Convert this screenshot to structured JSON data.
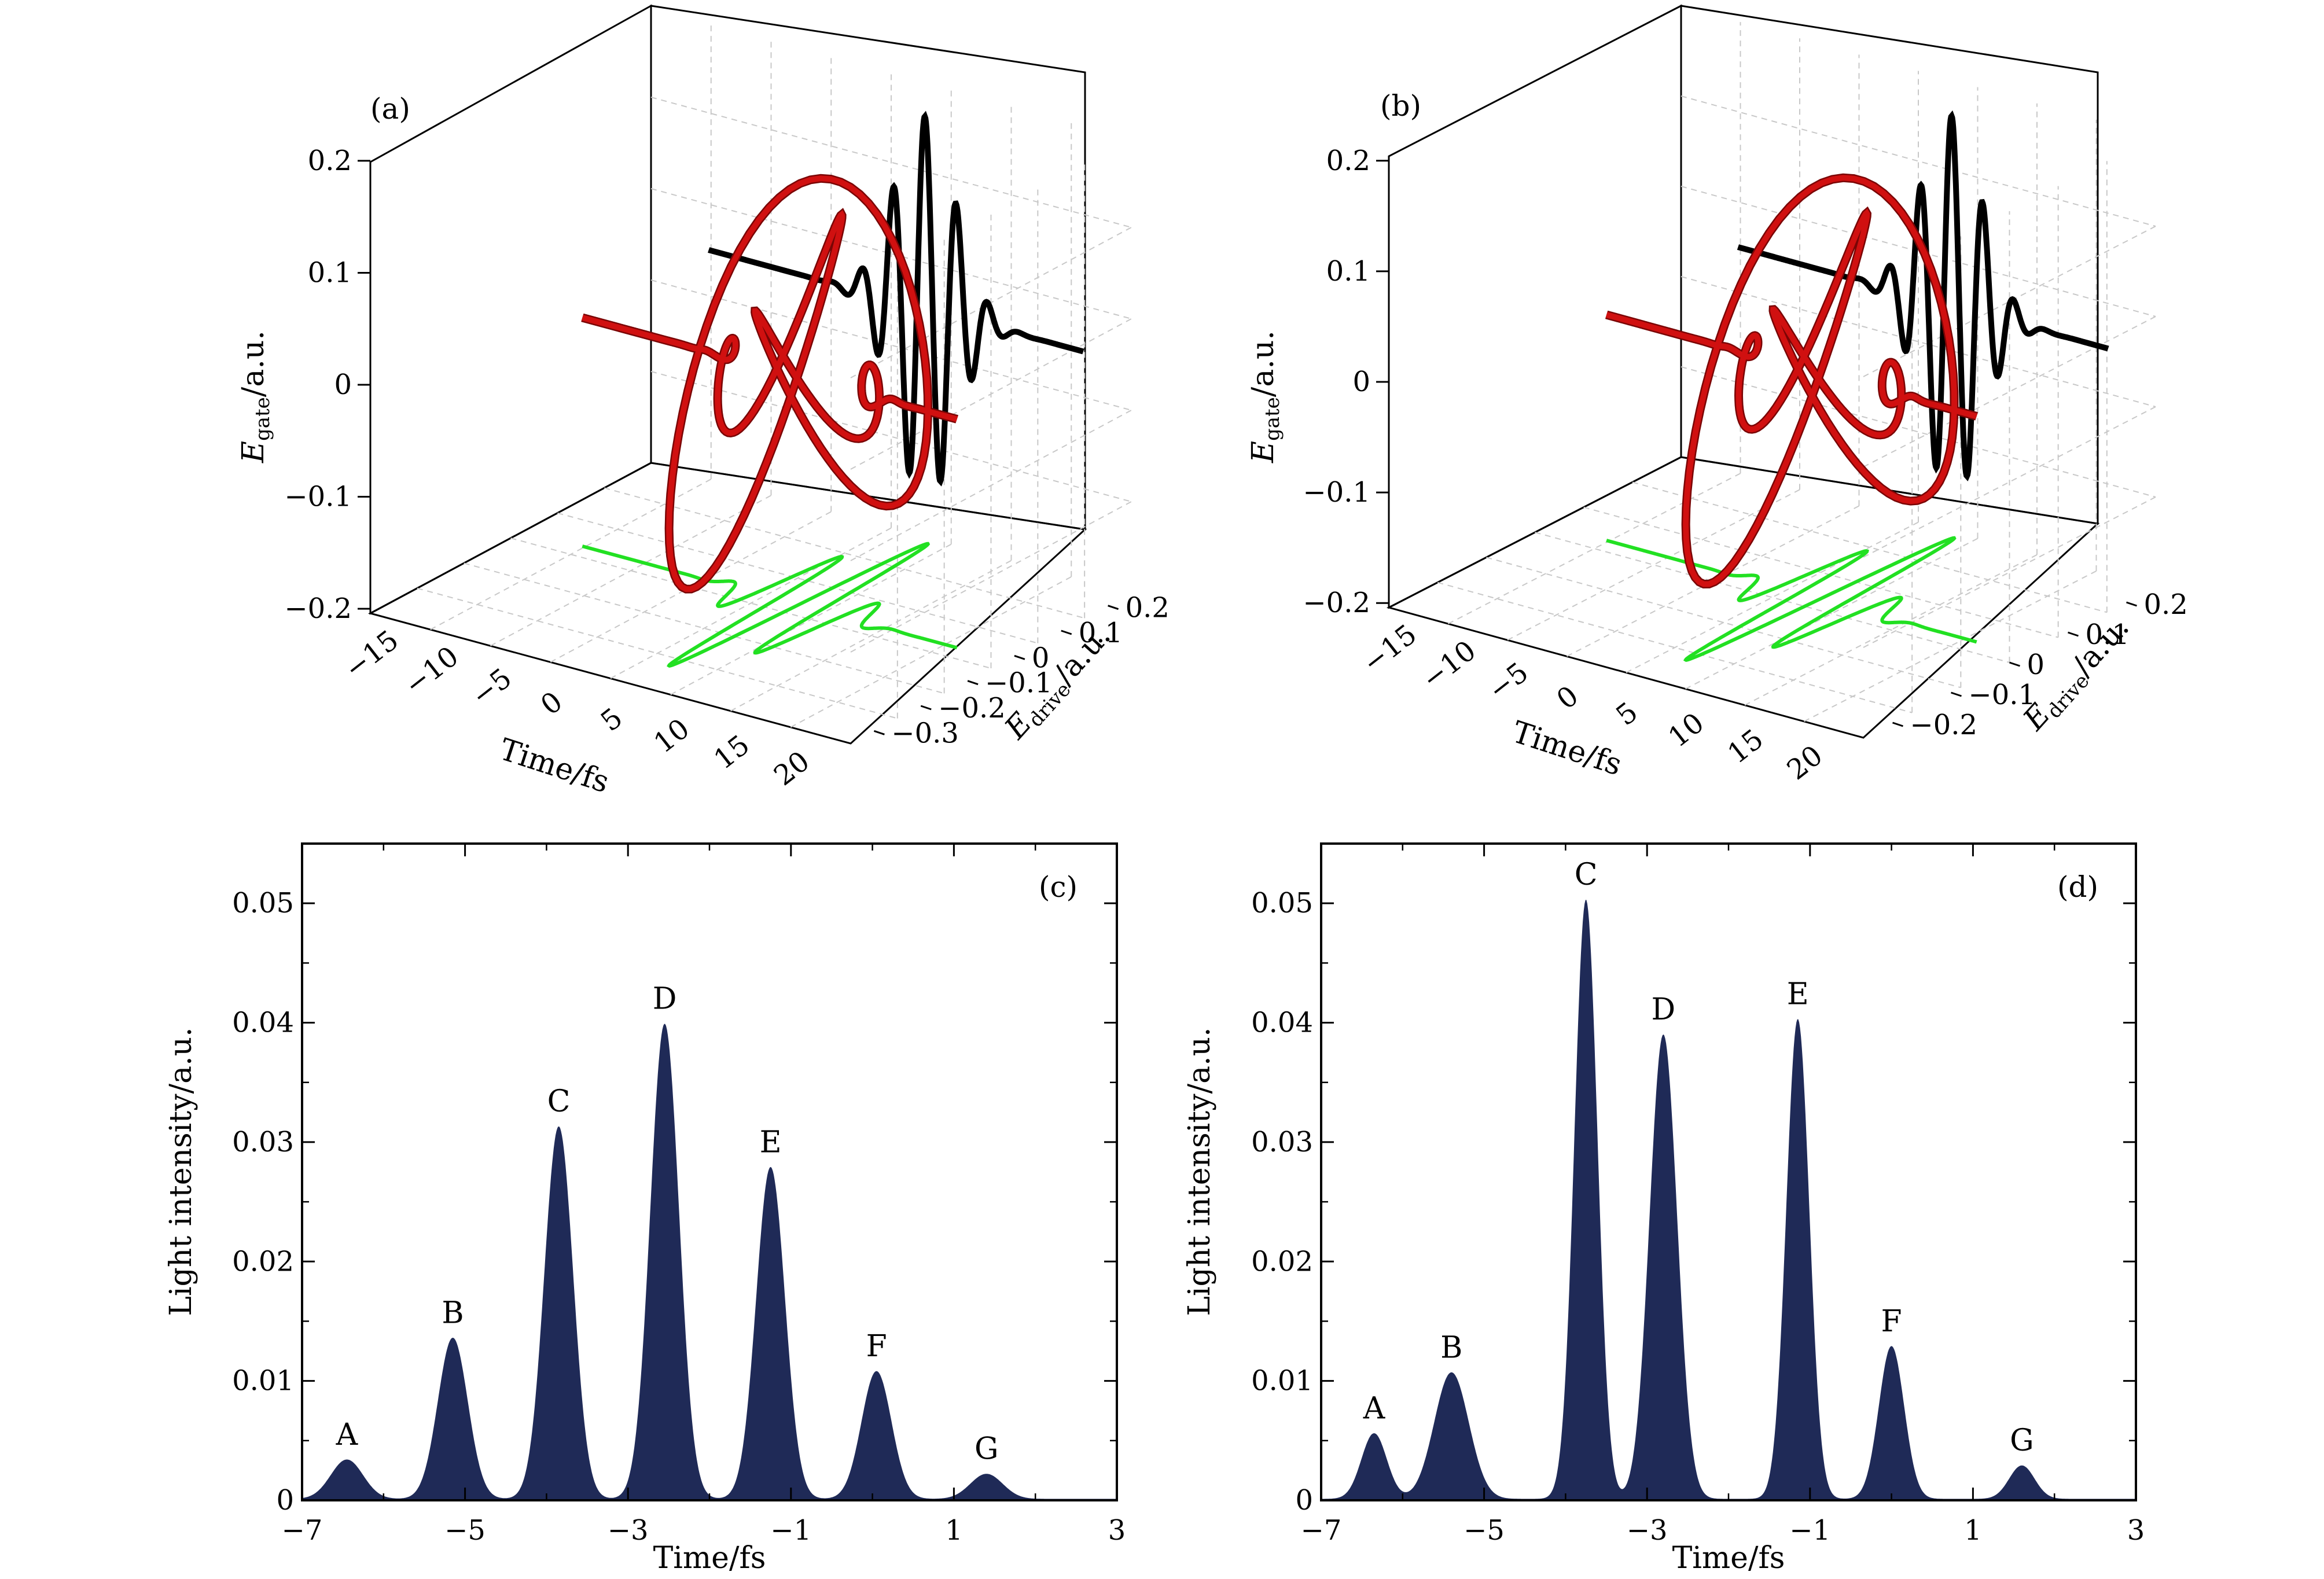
{
  "chart_data": [
    {
      "id": "a",
      "type": "line",
      "panel_label": "(a)",
      "projection": "3d",
      "xlabel": "Time/fs",
      "ylabel_main": "E",
      "ylabel_sub": "drive",
      "ylabel_unit": "/a.u.",
      "zlabel_main": "E",
      "zlabel_sub": "gate",
      "zlabel_unit": "/a.u.",
      "xticks": [
        "−15",
        "−10",
        "−5",
        "0",
        "5",
        "10",
        "15",
        "20"
      ],
      "yticks": [
        "−0.3",
        "−0.2",
        "−0.1",
        "0",
        "0.1",
        "0.2"
      ],
      "zticks": [
        "−0.2",
        "−0.1",
        "0",
        "0.1",
        "0.2"
      ],
      "series": [
        {
          "color": "#d01010",
          "description": "3D trajectory (E_drive, E_gate) vs time"
        },
        {
          "color": "#000000",
          "description": "projection on time–E_gate wall"
        },
        {
          "color": "#22e022",
          "description": "projection on time–E_drive floor"
        }
      ]
    },
    {
      "id": "b",
      "type": "line",
      "panel_label": "(b)",
      "projection": "3d",
      "xlabel": "Time/fs",
      "ylabel_main": "E",
      "ylabel_sub": "drive",
      "ylabel_unit": "/a.u.",
      "zlabel_main": "E",
      "zlabel_sub": "gate",
      "zlabel_unit": "/a.u.",
      "xticks": [
        "−15",
        "−10",
        "−5",
        "0",
        "5",
        "10",
        "15",
        "20"
      ],
      "yticks": [
        "−0.2",
        "−0.1",
        "0",
        "0.1",
        "0.2"
      ],
      "zticks": [
        "−0.2",
        "−0.1",
        "0",
        "0.1",
        "0.2"
      ],
      "series": [
        {
          "color": "#d01010",
          "description": "3D trajectory (E_drive, E_gate) vs time"
        },
        {
          "color": "#000000",
          "description": "projection on time–E_gate wall"
        },
        {
          "color": "#22e022",
          "description": "projection on time–E_drive floor"
        }
      ]
    },
    {
      "id": "c",
      "type": "area",
      "panel_label": "(c)",
      "xlabel": "Time/fs",
      "ylabel": "Light intensity/a.u.",
      "xlim": [
        -7,
        3
      ],
      "ylim": [
        0,
        0.055
      ],
      "xticks": [
        -7,
        -5,
        -3,
        -1,
        1,
        3
      ],
      "xtick_labels": [
        "−7",
        "−5",
        "−3",
        "−1",
        "1",
        "3"
      ],
      "yticks": [
        0,
        0.01,
        0.02,
        0.03,
        0.04,
        0.05
      ],
      "ytick_labels": [
        "0",
        "0.01",
        "0.02",
        "0.03",
        "0.04",
        "0.05"
      ],
      "fill_color": "#1f2a57",
      "peaks": [
        {
          "label": "A",
          "x": -6.45,
          "y": 0.0033,
          "width": 0.28
        },
        {
          "label": "B",
          "x": -5.15,
          "y": 0.0135,
          "width": 0.26
        },
        {
          "label": "C",
          "x": -3.85,
          "y": 0.0312,
          "width": 0.25
        },
        {
          "label": "D",
          "x": -2.55,
          "y": 0.0398,
          "width": 0.25
        },
        {
          "label": "E",
          "x": -1.25,
          "y": 0.0278,
          "width": 0.25
        },
        {
          "label": "F",
          "x": 0.05,
          "y": 0.0107,
          "width": 0.26
        },
        {
          "label": "G",
          "x": 1.4,
          "y": 0.0021,
          "width": 0.28
        }
      ]
    },
    {
      "id": "d",
      "type": "area",
      "panel_label": "(d)",
      "xlabel": "Time/fs",
      "ylabel": "Light intensity/a.u.",
      "xlim": [
        -7,
        3
      ],
      "ylim": [
        0,
        0.055
      ],
      "xticks": [
        -7,
        -5,
        -3,
        -1,
        1,
        3
      ],
      "xtick_labels": [
        "−7",
        "−5",
        "−3",
        "−1",
        "1",
        "3"
      ],
      "yticks": [
        0,
        0.01,
        0.02,
        0.03,
        0.04,
        0.05
      ],
      "ytick_labels": [
        "0",
        "0.01",
        "0.02",
        "0.03",
        "0.04",
        "0.05"
      ],
      "fill_color": "#1f2a57",
      "peaks": [
        {
          "label": "A",
          "x": -6.35,
          "y": 0.0055,
          "width": 0.22
        },
        {
          "label": "B",
          "x": -5.4,
          "y": 0.0106,
          "width": 0.3
        },
        {
          "label": "C",
          "x": -3.75,
          "y": 0.0502,
          "width": 0.2
        },
        {
          "label": "D",
          "x": -2.8,
          "y": 0.0389,
          "width": 0.24
        },
        {
          "label": "E",
          "x": -1.15,
          "y": 0.0402,
          "width": 0.2
        },
        {
          "label": "F",
          "x": 0.0,
          "y": 0.0128,
          "width": 0.22
        },
        {
          "label": "G",
          "x": 1.6,
          "y": 0.0028,
          "width": 0.22
        }
      ]
    }
  ]
}
